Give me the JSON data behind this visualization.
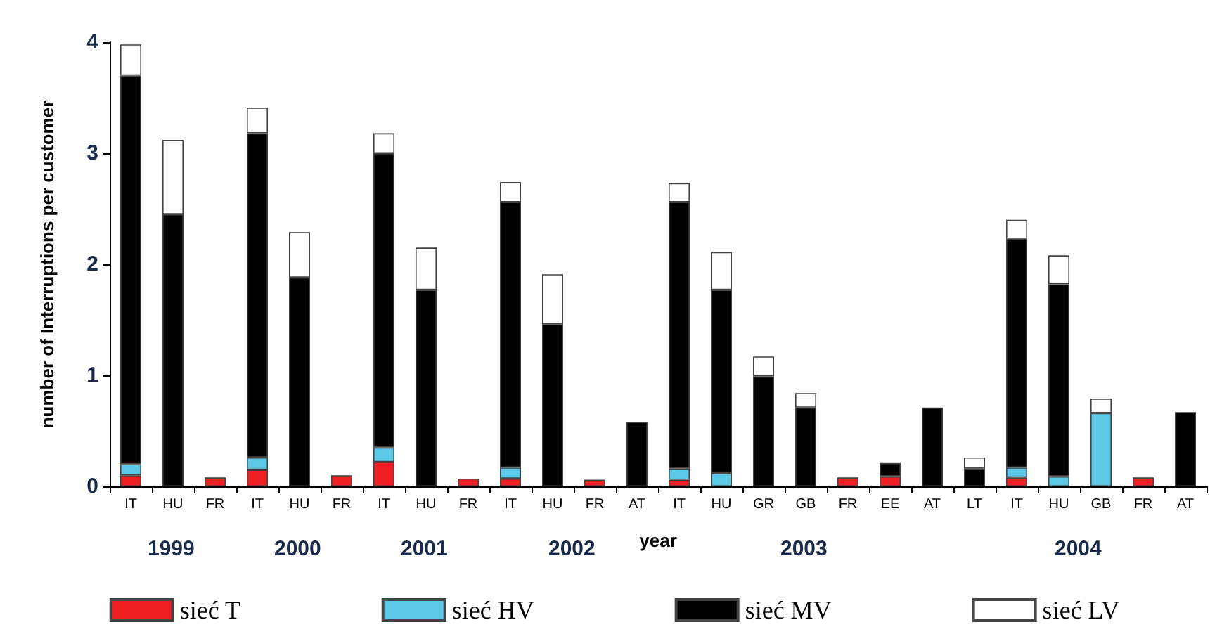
{
  "chart_data": {
    "type": "bar",
    "stacked": true,
    "xlabel": "year",
    "ylabel": "number of Interruptions per customer",
    "categories": [
      "IT",
      "HU",
      "FR",
      "IT",
      "HU",
      "FR",
      "IT",
      "HU",
      "FR",
      "IT",
      "HU",
      "FR",
      "AT",
      "IT",
      "HU",
      "GR",
      "GB",
      "FR",
      "EE",
      "AT",
      "LT",
      "IT",
      "HU",
      "GB",
      "FR",
      "AT"
    ],
    "series": [
      {
        "name": "sieć T",
        "color": "#ee2024",
        "values": [
          0.1,
          null,
          0.08,
          0.15,
          null,
          0.1,
          0.22,
          null,
          0.07,
          0.07,
          null,
          0.06,
          null,
          0.06,
          null,
          null,
          null,
          0.08,
          0.09,
          null,
          null,
          0.08,
          null,
          null,
          0.08,
          null
        ]
      },
      {
        "name": "sieć HV",
        "color": "#5bc8e8",
        "values": [
          0.1,
          null,
          null,
          0.11,
          null,
          null,
          0.13,
          null,
          null,
          0.1,
          null,
          null,
          null,
          0.1,
          0.12,
          null,
          null,
          null,
          null,
          null,
          null,
          0.09,
          0.09,
          0.66,
          null,
          null
        ]
      },
      {
        "name": "sieć MV",
        "color": "#000000",
        "values": [
          3.5,
          2.45,
          null,
          2.92,
          1.88,
          null,
          2.65,
          1.77,
          null,
          2.39,
          1.46,
          null,
          0.58,
          2.4,
          1.65,
          0.99,
          0.71,
          null,
          0.12,
          0.71,
          0.16,
          2.06,
          1.73,
          null,
          null,
          0.67
        ]
      },
      {
        "name": "sieć LV",
        "color": "#ffffff",
        "values": [
          0.28,
          0.67,
          null,
          0.23,
          0.41,
          null,
          0.18,
          0.38,
          null,
          0.18,
          0.45,
          null,
          null,
          0.17,
          0.34,
          0.18,
          0.13,
          null,
          null,
          null,
          0.1,
          0.17,
          0.26,
          0.13,
          null,
          null
        ]
      }
    ],
    "annotations": [
      "1999",
      "2000",
      "2001",
      "2002",
      "2003",
      "2004"
    ],
    "ylim": [
      0,
      4
    ],
    "yticks": [
      0,
      1,
      2,
      3,
      4
    ],
    "grid": false,
    "legend": "bottom"
  }
}
